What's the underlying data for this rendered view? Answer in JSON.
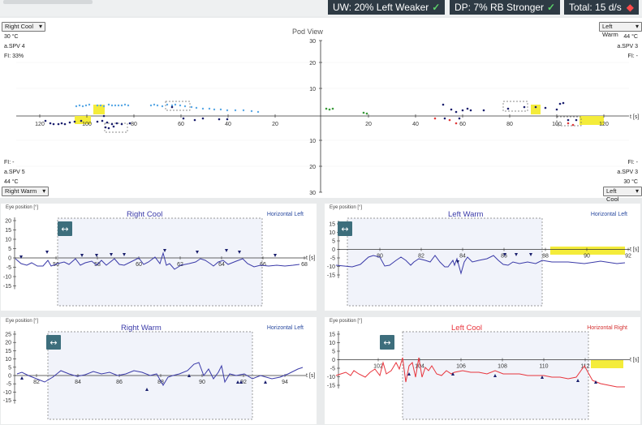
{
  "header": {
    "uw": "UW: 20% Left Weaker",
    "dp": "DP: 7% RB Stronger",
    "total": "Total: 15 d/s",
    "colors": {
      "badge_bg": "#2e3a44",
      "ok": "#5dd26a",
      "alert": "#ff4a4a"
    }
  },
  "pod": {
    "title": "Pod View",
    "top_left": {
      "select": "Right Cool",
      "temp": "30 °C",
      "spv": "a.SPV 4",
      "fi": "FI: 33%"
    },
    "top_right": {
      "select": "Left Warm",
      "temp": "44 °C",
      "spv": "a.SPV 3",
      "fi": "FI: -"
    },
    "bottom_left": {
      "fi": "FI: -",
      "spv": "a.SPV 5",
      "temp": "44 °C",
      "select": "Right Warm"
    },
    "bottom_right": {
      "fi": "FI: -",
      "spv": "a.SPV 3",
      "temp": "30 °C",
      "select": "Left Cool"
    },
    "x_ticks_left": [
      "120",
      "100",
      "80",
      "60",
      "40",
      "20"
    ],
    "x_ticks_right": [
      "20",
      "40",
      "60",
      "80",
      "100",
      "120"
    ],
    "y_ticks_up": [
      "30",
      "20",
      "10"
    ],
    "y_ticks_down": [
      "10",
      "20",
      "30"
    ],
    "x_unit": "t [s]"
  },
  "panels": [
    {
      "title": "Right Cool",
      "direction": "Horizontal Left",
      "y_label": "Eye position [°]",
      "color": "#3a3aa8",
      "dir_color": "#2a4aa0",
      "y_ticks": [
        "20",
        "15",
        "10",
        "5",
        "0",
        "-5",
        "-10",
        "-15"
      ],
      "x_ticks": [
        "56",
        "58",
        "60",
        "62",
        "64",
        "66",
        "68"
      ],
      "x_unit": "t [s]"
    },
    {
      "title": "Left Warm",
      "direction": "Horizontal Left",
      "y_label": "Eye position [°]",
      "color": "#3a3aa8",
      "dir_color": "#2a4aa0",
      "y_ticks": [
        "15",
        "10",
        "5",
        "0",
        "-5",
        "-10",
        "-15"
      ],
      "x_ticks": [
        "80",
        "82",
        "84",
        "86",
        "88",
        "90",
        "92"
      ],
      "x_unit": "t [s]"
    },
    {
      "title": "Right Warm",
      "direction": "Horizontal Left",
      "y_label": "Eye position [°]",
      "color": "#3a3aa8",
      "dir_color": "#2a4aa0",
      "y_ticks": [
        "25",
        "20",
        "15",
        "10",
        "5",
        "0",
        "-5",
        "-10",
        "-15"
      ],
      "x_ticks": [
        "82",
        "84",
        "86",
        "88",
        "90",
        "92",
        "94"
      ],
      "x_unit": "t [s]"
    },
    {
      "title": "Left Cool",
      "direction": "Horizontal Right",
      "y_label": "Eye position [°]",
      "color": "#e8343c",
      "dir_color": "#d43030",
      "y_ticks": [
        "15",
        "10",
        "5",
        "0",
        "-5",
        "-10",
        "-15"
      ],
      "x_ticks": [
        "102",
        "104",
        "106",
        "108",
        "110",
        "112"
      ],
      "x_unit": "t [s]"
    }
  ],
  "icons": {
    "swap": "horizontal-arrows-icon",
    "check": "check-icon",
    "record": "record-dot-icon"
  }
}
